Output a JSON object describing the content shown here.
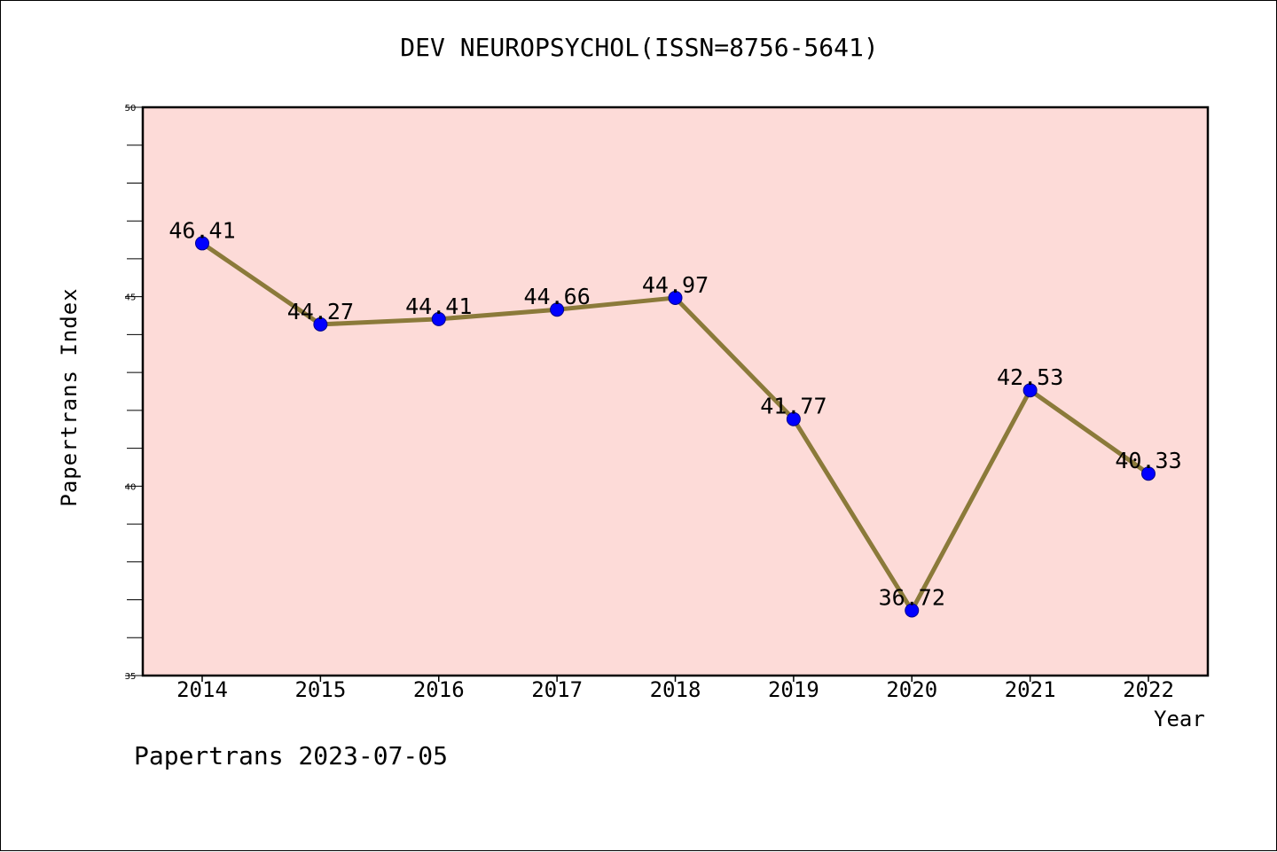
{
  "chart_data": {
    "type": "line",
    "title": "DEV NEUROPSYCHOL(ISSN=8756-5641)",
    "xlabel": "Year",
    "ylabel": "Papertrans Index",
    "categories": [
      "2014",
      "2015",
      "2016",
      "2017",
      "2018",
      "2019",
      "2020",
      "2021",
      "2022"
    ],
    "series": [
      {
        "values": [
          46.41,
          44.27,
          44.41,
          44.66,
          44.97,
          41.77,
          36.72,
          42.53,
          40.33
        ],
        "labels": [
          "46.41",
          "44.27",
          "44.41",
          "44.66",
          "44.97",
          "41.77",
          "36.72",
          "42.53",
          "40.33"
        ],
        "line_color": "#8b7a3a",
        "marker_color": "#0000ff"
      }
    ],
    "ylim": [
      35,
      50
    ],
    "y_ticks": [
      35,
      40,
      45,
      50
    ],
    "y_tick_labels": [
      "35",
      "40",
      "45",
      "50"
    ],
    "grid": false,
    "plot_background": "#fddbd8"
  },
  "footer": "Papertrans 2023-07-05"
}
